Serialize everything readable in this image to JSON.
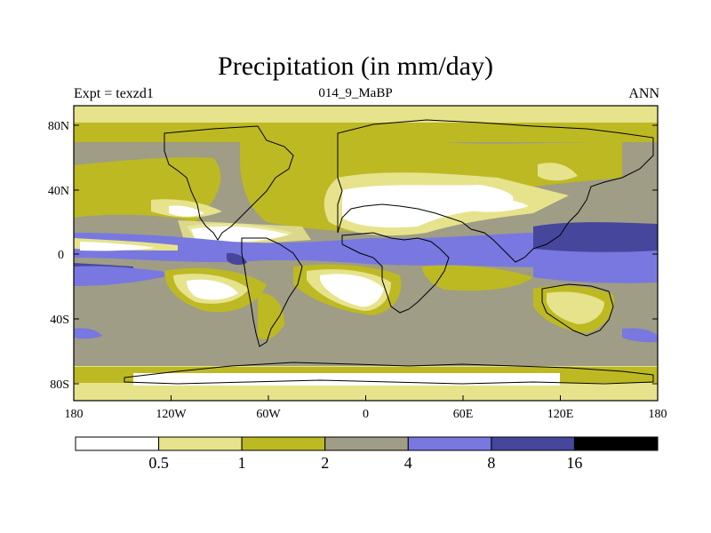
{
  "map": {
    "title": "Precipitation (in mm/day)",
    "left_label": "Expt = texzd1",
    "center_label": "014_9_MaBP",
    "right_label": "ANN",
    "lon_ticks": [
      "180",
      "120W",
      "60W",
      "0",
      "60E",
      "120E",
      "180"
    ],
    "lat_ticks": [
      "80N",
      "40N",
      "0",
      "40S",
      "80S"
    ],
    "lon_range": [
      -180,
      180
    ],
    "lat_range": [
      -90,
      90
    ]
  },
  "colorbar": {
    "labels": [
      "0.5",
      "1",
      "2",
      "4",
      "8",
      "16"
    ],
    "colors": [
      "#ffffff",
      "#e6e38c",
      "#bdb923",
      "#9f9d85",
      "#7878e0",
      "#46469c",
      "#000000"
    ]
  }
}
